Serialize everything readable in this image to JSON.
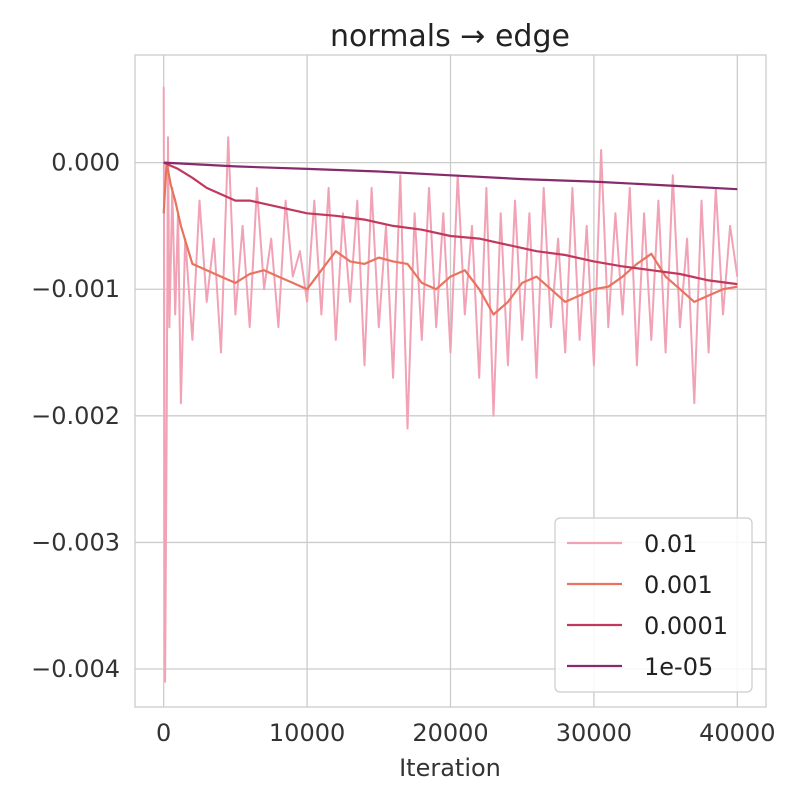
{
  "chart_data": {
    "type": "line",
    "title": "normals → edge",
    "xlabel": "Iteration",
    "ylabel": "",
    "xlim": [
      -2000,
      42000
    ],
    "ylim": [
      -0.0043,
      0.00085
    ],
    "xticks": [
      0,
      10000,
      20000,
      30000,
      40000
    ],
    "xtick_labels": [
      "0",
      "10000",
      "20000",
      "30000",
      "40000"
    ],
    "yticks": [
      0.0,
      -0.001,
      -0.002,
      -0.003,
      -0.004
    ],
    "ytick_labels": [
      "0.000",
      "−0.001",
      "−0.002",
      "−0.003",
      "−0.004"
    ],
    "grid": true,
    "legend_position": "lower-right",
    "series": [
      {
        "name": "0.01",
        "color": "#f1a2b4",
        "x": [
          0,
          100,
          200,
          300,
          400,
          600,
          800,
          1000,
          1200,
          1500,
          2000,
          2500,
          3000,
          3500,
          4000,
          4500,
          5000,
          5500,
          6000,
          6500,
          7000,
          7500,
          8000,
          8500,
          9000,
          9500,
          10000,
          10500,
          11000,
          11500,
          12000,
          12500,
          13000,
          13500,
          14000,
          14500,
          15000,
          15500,
          16000,
          16500,
          17000,
          17500,
          18000,
          18500,
          19000,
          19500,
          20000,
          20500,
          21000,
          21500,
          22000,
          22500,
          23000,
          23500,
          24000,
          24500,
          25000,
          25500,
          26000,
          26500,
          27000,
          27500,
          28000,
          28500,
          29000,
          29500,
          30000,
          30500,
          31000,
          31500,
          32000,
          32500,
          33000,
          33500,
          34000,
          34500,
          35000,
          35500,
          36000,
          36500,
          37000,
          37500,
          38000,
          38500,
          39000,
          39500,
          40000
        ],
        "values": [
          0.0006,
          -0.0041,
          -0.0022,
          0.0002,
          -0.0013,
          -0.0002,
          -0.0012,
          -0.0004,
          -0.0019,
          -0.0006,
          -0.0014,
          -0.0003,
          -0.0011,
          -0.0006,
          -0.0015,
          0.0002,
          -0.0012,
          -0.0005,
          -0.0013,
          -0.0002,
          -0.001,
          -0.0006,
          -0.0013,
          -0.0003,
          -0.0009,
          -0.0007,
          -0.0011,
          -0.0003,
          -0.0012,
          -0.0002,
          -0.0014,
          -0.0004,
          -0.0011,
          -0.0003,
          -0.0016,
          -0.0002,
          -0.0013,
          -0.0005,
          -0.0017,
          -0.0001,
          -0.0021,
          -0.0004,
          -0.0014,
          -0.0002,
          -0.0013,
          -0.0004,
          -0.0015,
          -0.0001,
          -0.0012,
          -0.0005,
          -0.0017,
          -0.0002,
          -0.002,
          -0.0004,
          -0.0016,
          -0.0003,
          -0.0014,
          -0.0004,
          -0.0017,
          -0.0002,
          -0.0013,
          -0.0006,
          -0.0015,
          -0.0002,
          -0.0014,
          -0.0005,
          -0.0016,
          0.0001,
          -0.0013,
          -0.0004,
          -0.0012,
          -0.0002,
          -0.0016,
          -0.0004,
          -0.0014,
          -0.0003,
          -0.0015,
          -0.0001,
          -0.0013,
          -0.0006,
          -0.0019,
          -0.0003,
          -0.0015,
          -0.0002,
          -0.0012,
          -0.0005,
          -0.0009
        ]
      },
      {
        "name": "0.001",
        "color": "#e8735f",
        "x": [
          0,
          200,
          500,
          800,
          1200,
          1600,
          2000,
          3000,
          4000,
          5000,
          6000,
          7000,
          8000,
          9000,
          10000,
          11000,
          12000,
          13000,
          14000,
          15000,
          16000,
          17000,
          18000,
          19000,
          20000,
          21000,
          22000,
          23000,
          24000,
          25000,
          26000,
          27000,
          28000,
          29000,
          30000,
          31000,
          32000,
          33000,
          34000,
          35000,
          36000,
          37000,
          38000,
          39000,
          40000
        ],
        "values": [
          -0.0004,
          0.0,
          -0.00018,
          -0.0003,
          -0.0005,
          -0.00065,
          -0.0008,
          -0.00085,
          -0.0009,
          -0.00095,
          -0.00088,
          -0.00085,
          -0.0009,
          -0.00095,
          -0.001,
          -0.00085,
          -0.0007,
          -0.00078,
          -0.0008,
          -0.00075,
          -0.00078,
          -0.0008,
          -0.00095,
          -0.001,
          -0.0009,
          -0.00085,
          -0.001,
          -0.0012,
          -0.0011,
          -0.00095,
          -0.0009,
          -0.001,
          -0.0011,
          -0.00105,
          -0.001,
          -0.00098,
          -0.0009,
          -0.0008,
          -0.00072,
          -0.0009,
          -0.001,
          -0.0011,
          -0.00105,
          -0.001,
          -0.00098
        ]
      },
      {
        "name": "0.0001",
        "color": "#c0395d",
        "x": [
          0,
          1000,
          2000,
          3000,
          4000,
          5000,
          6000,
          8000,
          10000,
          12000,
          14000,
          16000,
          18000,
          20000,
          22000,
          24000,
          26000,
          28000,
          30000,
          32000,
          34000,
          36000,
          38000,
          40000
        ],
        "values": [
          0.0,
          -5e-05,
          -0.00012,
          -0.0002,
          -0.00025,
          -0.0003,
          -0.0003,
          -0.00035,
          -0.0004,
          -0.00042,
          -0.00045,
          -0.0005,
          -0.00053,
          -0.00058,
          -0.0006,
          -0.00065,
          -0.0007,
          -0.00073,
          -0.00078,
          -0.00082,
          -0.00085,
          -0.00088,
          -0.00093,
          -0.00096
        ]
      },
      {
        "name": "1e-05",
        "color": "#872a6b",
        "x": [
          0,
          5000,
          10000,
          15000,
          20000,
          25000,
          30000,
          35000,
          40000
        ],
        "values": [
          0.0,
          -3e-05,
          -5e-05,
          -7e-05,
          -0.0001,
          -0.00013,
          -0.00015,
          -0.00018,
          -0.00021
        ]
      }
    ]
  }
}
